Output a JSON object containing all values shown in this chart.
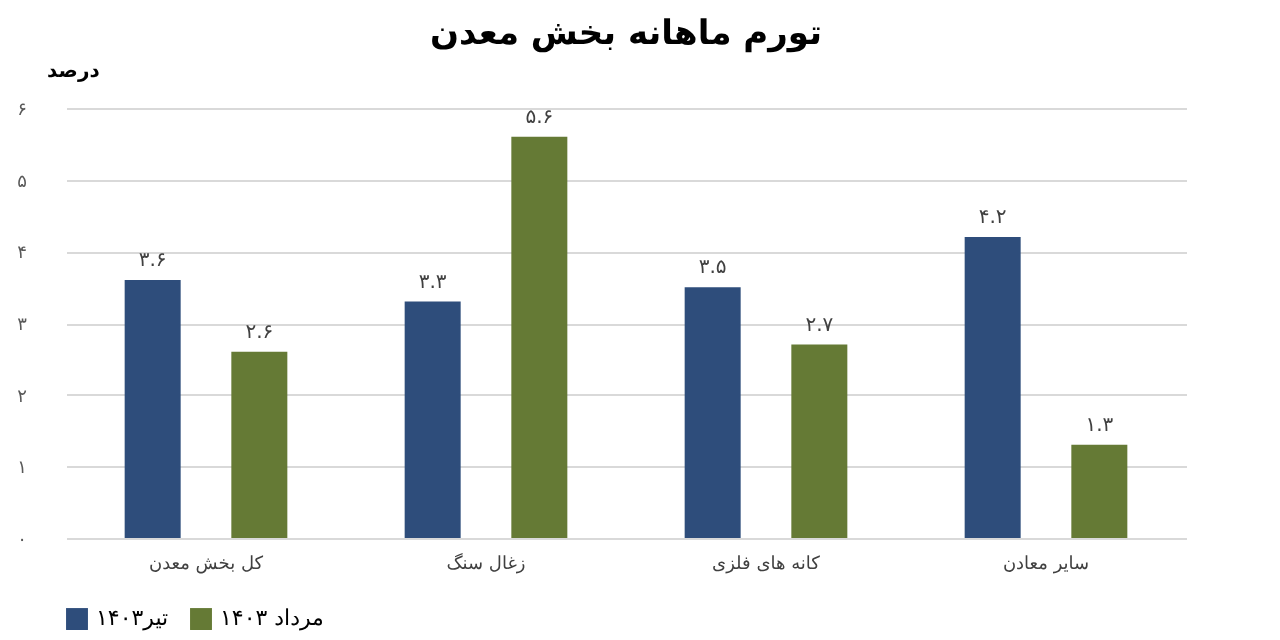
{
  "chart_data": {
    "type": "bar",
    "title": "تورم ماهانه بخش معدن",
    "ylabel": "درصد",
    "categories": [
      "کل بخش معدن",
      "زغال سنگ",
      "کانه های فلزی",
      "سایر معادن"
    ],
    "series": [
      {
        "name": "تیر۱۴۰۳",
        "color": "#2e4d7b",
        "values": [
          3.6,
          3.3,
          3.5,
          4.2
        ],
        "value_labels": [
          "۳.۶",
          "۳.۳",
          "۳.۵",
          "۴.۲"
        ]
      },
      {
        "name": "مرداد ۱۴۰۳",
        "color": "#657a35",
        "values": [
          2.6,
          5.6,
          2.7,
          1.3
        ],
        "value_labels": [
          "۲.۶",
          "۵.۶",
          "۲.۷",
          "۱.۳"
        ]
      }
    ],
    "ylim": [
      0,
      6
    ],
    "yticks": [
      {
        "value": 0,
        "label": "۰"
      },
      {
        "value": 1,
        "label": "۱"
      },
      {
        "value": 2,
        "label": "۲"
      },
      {
        "value": 3,
        "label": "۳"
      },
      {
        "value": 4,
        "label": "۴"
      },
      {
        "value": 5,
        "label": "۵"
      },
      {
        "value": 6,
        "label": "۶"
      }
    ],
    "grid": "y",
    "legend": "bottom"
  }
}
